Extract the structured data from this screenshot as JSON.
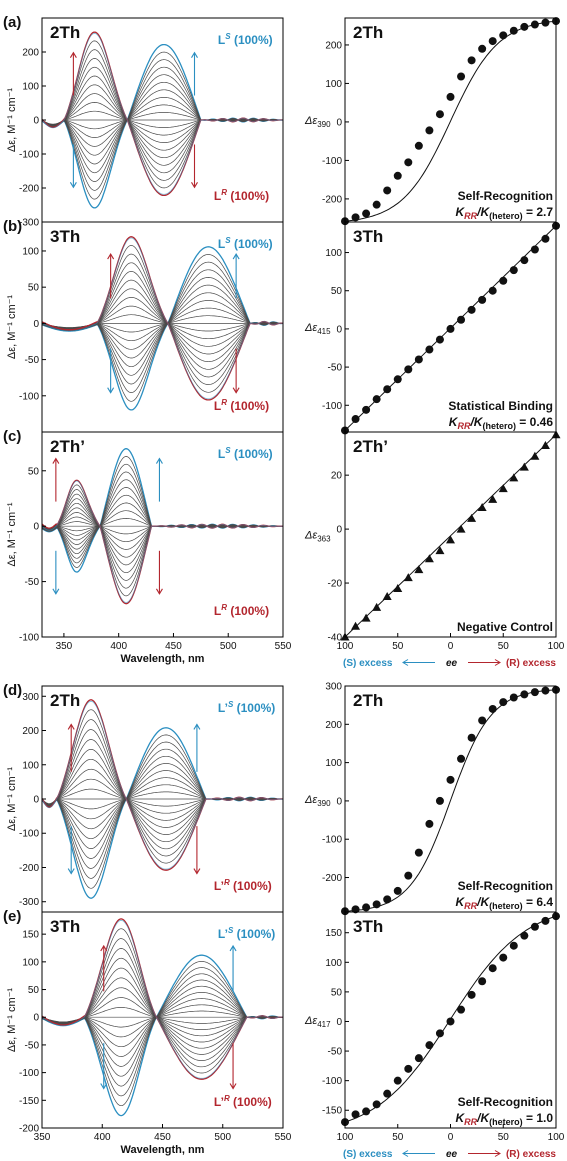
{
  "figure": {
    "wavelength_label": "Wavelength, nm",
    "y_label_cd": "Δε, M⁻¹ cm⁻¹",
    "ee_axis": {
      "s_label": "(S) excess",
      "center_label": "ee",
      "r_label": "(R) excess"
    },
    "colors": {
      "s": "#2b8fc1",
      "r": "#b3262e",
      "curve": "#4a4a4a",
      "axis": "#000000"
    }
  },
  "chart_data": [
    {
      "panel": "(a)",
      "type": "line",
      "title": "2Th",
      "xlim": [
        330,
        550
      ],
      "ylim": [
        -300,
        300
      ],
      "x_ticks": [],
      "y_ticks": [
        -300,
        -200,
        -100,
        0,
        100,
        200
      ],
      "xlabel": "",
      "ylabel": "Δε, M⁻¹ cm⁻¹",
      "legend": {
        "s": "L",
        "s_sup": "S",
        "s_pct": " (100%)",
        "r": "L",
        "r_sup": "R",
        "r_pct": " (100%)"
      },
      "bands": [
        {
          "center": 376,
          "width": 16,
          "amp": 260
        },
        {
          "center": 440,
          "width": 23,
          "amp": 222
        }
      ],
      "zero_crossings": [
        350,
        408,
        475
      ],
      "n_curves": 21
    },
    {
      "panel": "(a)",
      "type": "scatter",
      "title": "2Th",
      "xlim": [
        -100,
        100
      ],
      "ylim": [
        -260,
        270
      ],
      "y_ticks": [
        -200,
        -100,
        0,
        100,
        200
      ],
      "ylabel": "Δε",
      "ylabel_sub": "390",
      "x": [
        -100,
        -90,
        -80,
        -70,
        -60,
        -50,
        -40,
        -30,
        -20,
        -10,
        0,
        10,
        20,
        30,
        40,
        50,
        60,
        70,
        80,
        90,
        100
      ],
      "y": [
        -258,
        -248,
        -238,
        -215,
        -178,
        -140,
        -105,
        -62,
        -22,
        20,
        65,
        118,
        160,
        190,
        210,
        225,
        237,
        247,
        253,
        258,
        262
      ],
      "fit": {
        "kind": "sigmoid",
        "k": 2.2
      },
      "annotation": [
        "Self-Recognition",
        "K",
        "RR",
        "/K",
        "(hetero)",
        " = 2.7"
      ]
    },
    {
      "panel": "(b)",
      "type": "line",
      "title": "3Th",
      "xlim": [
        330,
        550
      ],
      "ylim": [
        -150,
        140
      ],
      "x_ticks": [],
      "y_ticks": [
        -100,
        -50,
        0,
        50,
        100
      ],
      "xlabel": "",
      "ylabel": "Δε, M⁻¹ cm⁻¹",
      "legend": {
        "s": "L",
        "s_sup": "S",
        "s_pct": " (100%)",
        "r": "L",
        "r_sup": "R",
        "r_pct": " (100%)"
      },
      "bands": [
        {
          "center": 410,
          "width": 16,
          "amp": 120
        },
        {
          "center": 478,
          "width": 22,
          "amp": 106
        }
      ],
      "zero_crossings": [
        380,
        445,
        520
      ],
      "n_curves": 21
    },
    {
      "panel": "(b)",
      "type": "scatter",
      "title": "3Th",
      "xlim": [
        -100,
        100
      ],
      "ylim": [
        -135,
        140
      ],
      "y_ticks": [
        -100,
        -50,
        0,
        50,
        100
      ],
      "ylabel": "Δε",
      "ylabel_sub": "415",
      "x": [
        -100,
        -90,
        -80,
        -70,
        -60,
        -50,
        -40,
        -30,
        -20,
        -10,
        0,
        10,
        20,
        30,
        40,
        50,
        60,
        70,
        80,
        90,
        100
      ],
      "y": [
        -133,
        -118,
        -106,
        -92,
        -79,
        -66,
        -53,
        -40,
        -27,
        -14,
        0,
        12,
        25,
        38,
        50,
        63,
        77,
        90,
        104,
        118,
        135
      ],
      "fit": {
        "kind": "linear"
      },
      "annotation": [
        "Statistical Binding",
        "K",
        "RR",
        "/K",
        "(hetero)",
        " = 0.46"
      ]
    },
    {
      "panel": "(c)",
      "type": "line",
      "title": "2Th’",
      "xlim": [
        330,
        550
      ],
      "ylim": [
        -100,
        85
      ],
      "x_ticks": [
        350,
        400,
        450,
        500,
        550
      ],
      "y_ticks": [
        -100,
        -50,
        0,
        50
      ],
      "xlabel": "Wavelength, nm",
      "ylabel": "Δε, M⁻¹ cm⁻¹",
      "legend": {
        "s": "L",
        "s_sup": "S",
        "s_pct": " (100%)",
        "r": "L",
        "r_sup": "R",
        "r_pct": " (100%)"
      },
      "bands": [
        {
          "center": 360,
          "width": 9,
          "amp": 42
        },
        {
          "center": 408,
          "width": 11,
          "amp": 70
        }
      ],
      "zero_crossings": [
        343,
        383,
        430
      ],
      "n_curves": 21
    },
    {
      "panel": "(c)",
      "type": "scatter",
      "title": "2Th’",
      "marker": "triangle",
      "xlim": [
        -100,
        100
      ],
      "ylim": [
        -40,
        36
      ],
      "y_ticks": [
        -40,
        -20,
        0,
        20
      ],
      "ylabel": "Δε",
      "ylabel_sub": "363",
      "x_ticks": [
        -100,
        -50,
        0,
        50,
        100
      ],
      "x_tick_labels": [
        "100",
        "50",
        "0",
        "50",
        "100"
      ],
      "x": [
        -100,
        -90,
        -80,
        -70,
        -60,
        -50,
        -40,
        -30,
        -20,
        -10,
        0,
        10,
        20,
        30,
        40,
        50,
        60,
        70,
        80,
        90,
        100
      ],
      "y": [
        -40,
        -36,
        -33,
        -29,
        -25,
        -22,
        -18,
        -15,
        -11,
        -8,
        -4,
        0,
        4,
        8,
        11,
        15,
        19,
        23,
        27,
        31,
        35
      ],
      "fit": {
        "kind": "linear"
      },
      "annotation": [
        "Negative Control"
      ]
    },
    {
      "panel": "(d)",
      "type": "line",
      "title": "2Th",
      "xlim": [
        350,
        550
      ],
      "ylim": [
        -330,
        330
      ],
      "x_ticks": [],
      "y_ticks": [
        -300,
        -200,
        -100,
        0,
        100,
        200,
        300
      ],
      "xlabel": "",
      "ylabel": "Δε, M⁻¹ cm⁻¹",
      "legend": {
        "s": "L’",
        "s_sup": "S",
        "s_pct": " (100%)",
        "r": "L’",
        "r_sup": "R",
        "r_pct": " (100%)"
      },
      "bands": [
        {
          "center": 390,
          "width": 15,
          "amp": 290
        },
        {
          "center": 452,
          "width": 22,
          "amp": 208
        }
      ],
      "zero_crossings": [
        362,
        420,
        486
      ],
      "n_curves": 21
    },
    {
      "panel": "(d)",
      "type": "scatter",
      "title": "2Th",
      "xlim": [
        -100,
        100
      ],
      "ylim": [
        -290,
        300
      ],
      "y_ticks": [
        -200,
        -100,
        0,
        100,
        200,
        300
      ],
      "ylabel": "Δε",
      "ylabel_sub": "390",
      "x": [
        -100,
        -90,
        -80,
        -70,
        -60,
        -50,
        -40,
        -30,
        -20,
        -10,
        0,
        10,
        20,
        30,
        40,
        50,
        60,
        70,
        80,
        90,
        100
      ],
      "y": [
        -288,
        -283,
        -278,
        -270,
        -257,
        -235,
        -195,
        -135,
        -60,
        0,
        55,
        110,
        165,
        210,
        240,
        258,
        270,
        278,
        284,
        288,
        290
      ],
      "fit": {
        "kind": "sigmoid",
        "k": 2.6
      },
      "annotation": [
        "Self-Recognition",
        "K",
        "RR",
        "/K",
        "(hetero)",
        " = 6.4"
      ]
    },
    {
      "panel": "(e)",
      "type": "line",
      "title": "3Th",
      "xlim": [
        350,
        550
      ],
      "ylim": [
        -200,
        190
      ],
      "x_ticks": [
        350,
        400,
        450,
        500,
        550
      ],
      "y_ticks": [
        -200,
        -150,
        -100,
        -50,
        0,
        50,
        100,
        150
      ],
      "xlabel": "Wavelength, nm",
      "ylabel": "Δε, M⁻¹ cm⁻¹",
      "legend": {
        "s": "L’",
        "s_sup": "S",
        "s_pct": " (100%)",
        "r": "L’",
        "r_sup": "R",
        "r_pct": " (100%)"
      },
      "bands": [
        {
          "center": 417,
          "width": 16,
          "amp": 178
        },
        {
          "center": 482,
          "width": 22,
          "amp": 112
        }
      ],
      "zero_crossings": [
        385,
        445,
        520
      ],
      "n_curves": 21
    },
    {
      "panel": "(e)",
      "type": "scatter",
      "title": "3Th",
      "xlim": [
        -100,
        100
      ],
      "ylim": [
        -180,
        185
      ],
      "y_ticks": [
        -150,
        -100,
        -50,
        0,
        50,
        100,
        150
      ],
      "ylabel": "Δε",
      "ylabel_sub": "417",
      "x_ticks": [
        -100,
        -50,
        0,
        50,
        100
      ],
      "x_tick_labels": [
        "100",
        "50",
        "0",
        "50",
        "100"
      ],
      "x": [
        -100,
        -90,
        -80,
        -70,
        -60,
        -50,
        -40,
        -30,
        -20,
        -10,
        0,
        10,
        20,
        30,
        40,
        50,
        60,
        70,
        80,
        90,
        100
      ],
      "y": [
        -170,
        -157,
        -152,
        -140,
        -122,
        -100,
        -80,
        -62,
        -40,
        -20,
        0,
        20,
        45,
        68,
        90,
        108,
        128,
        145,
        160,
        170,
        178
      ],
      "fit": {
        "kind": "sigmoid",
        "k": 1.4
      },
      "annotation": [
        "Self-Recognition",
        "K",
        "RR",
        "/K",
        "(hetero)",
        " = 1.0"
      ]
    }
  ]
}
